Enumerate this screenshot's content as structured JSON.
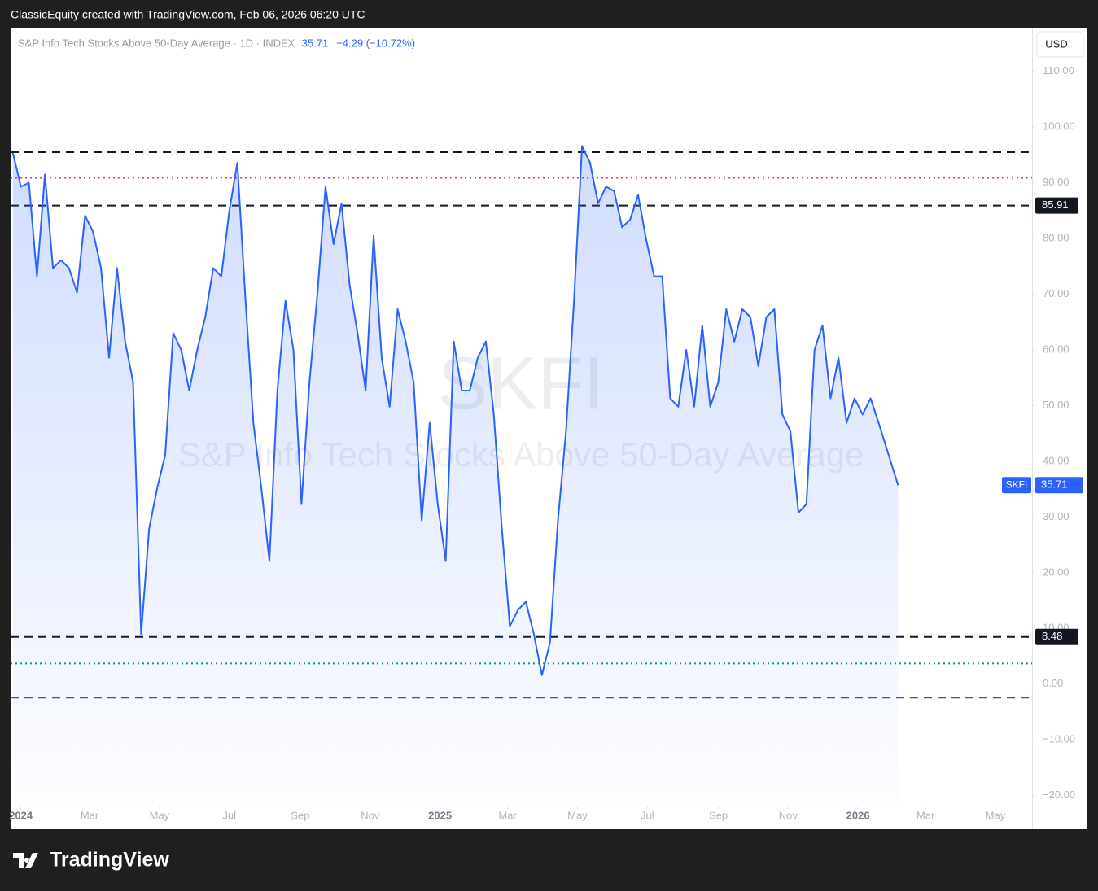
{
  "chart_data": {
    "type": "line",
    "credit": "ClassicEquity created with TradingView.com, Feb 06, 2026 06:20 UTC",
    "legend_label": "S&P Info Tech Stocks Above 50-Day Average · 1D · INDEX",
    "change": "−4.29 (−10.72%)",
    "currency": "USD",
    "watermark_symbol": "SKFI",
    "watermark_title": "S&P Info Tech Stocks Above 50-Day Average",
    "brand": "TradingView",
    "x": [
      "2023-12-25",
      "2024-01-01",
      "2024-01-08",
      "2024-01-15",
      "2024-01-22",
      "2024-01-29",
      "2024-02-05",
      "2024-02-12",
      "2024-02-19",
      "2024-02-26",
      "2024-03-04",
      "2024-03-11",
      "2024-03-18",
      "2024-03-25",
      "2024-04-01",
      "2024-04-08",
      "2024-04-15",
      "2024-04-22",
      "2024-04-29",
      "2024-05-06",
      "2024-05-13",
      "2024-05-20",
      "2024-05-27",
      "2024-06-03",
      "2024-06-10",
      "2024-06-17",
      "2024-06-24",
      "2024-07-01",
      "2024-07-08",
      "2024-07-15",
      "2024-07-22",
      "2024-07-29",
      "2024-08-05",
      "2024-08-12",
      "2024-08-19",
      "2024-08-26",
      "2024-09-02",
      "2024-09-09",
      "2024-09-16",
      "2024-09-23",
      "2024-09-30",
      "2024-10-07",
      "2024-10-14",
      "2024-10-21",
      "2024-10-28",
      "2024-11-04",
      "2024-11-11",
      "2024-11-18",
      "2024-11-25",
      "2024-12-02",
      "2024-12-09",
      "2024-12-16",
      "2024-12-23",
      "2024-12-30",
      "2025-01-06",
      "2025-01-13",
      "2025-01-20",
      "2025-01-27",
      "2025-02-03",
      "2025-02-10",
      "2025-02-17",
      "2025-02-24",
      "2025-03-03",
      "2025-03-10",
      "2025-03-17",
      "2025-03-24",
      "2025-03-31",
      "2025-04-07",
      "2025-04-14",
      "2025-04-21",
      "2025-04-28",
      "2025-05-05",
      "2025-05-12",
      "2025-05-19",
      "2025-05-26",
      "2025-06-02",
      "2025-06-09",
      "2025-06-16",
      "2025-06-23",
      "2025-06-30",
      "2025-07-07",
      "2025-07-14",
      "2025-07-21",
      "2025-07-28",
      "2025-08-04",
      "2025-08-11",
      "2025-08-18",
      "2025-08-25",
      "2025-09-01",
      "2025-09-08",
      "2025-09-15",
      "2025-09-22",
      "2025-09-29",
      "2025-10-06",
      "2025-10-13",
      "2025-10-20",
      "2025-10-27",
      "2025-11-03",
      "2025-11-10",
      "2025-11-17",
      "2025-11-24",
      "2025-12-01",
      "2025-12-08",
      "2025-12-15",
      "2025-12-22",
      "2025-12-29",
      "2026-01-05",
      "2026-01-12",
      "2026-01-19",
      "2026-02-05"
    ],
    "series": [
      {
        "name": "SKFI",
        "color": "#2962ff",
        "values": [
          95.4,
          89.3,
          90.0,
          73.2,
          91.5,
          74.7,
          76.1,
          74.7,
          70.3,
          84.1,
          81.2,
          74.7,
          58.6,
          74.7,
          61.5,
          54.2,
          8.9,
          27.9,
          35.2,
          41.1,
          63.0,
          60.0,
          52.7,
          60.0,
          65.9,
          74.7,
          73.2,
          84.9,
          93.6,
          69.5,
          46.9,
          35.2,
          22.1,
          52.7,
          68.8,
          60.0,
          32.3,
          54.2,
          70.3,
          89.3,
          79.0,
          86.3,
          71.7,
          63.0,
          52.7,
          80.5,
          58.6,
          49.8,
          67.3,
          61.5,
          54.2,
          29.4,
          46.9,
          32.3,
          22.1,
          61.5,
          52.7,
          52.7,
          58.6,
          61.5,
          48.4,
          27.9,
          10.4,
          13.3,
          14.8,
          8.9,
          1.6,
          7.5,
          29.4,
          45.4,
          68.8,
          96.6,
          93.6,
          86.3,
          89.3,
          88.5,
          82.0,
          83.4,
          87.8,
          79.8,
          73.2,
          73.2,
          51.3,
          49.8,
          60.0,
          49.8,
          64.4,
          49.8,
          54.2,
          67.3,
          61.5,
          67.3,
          65.9,
          57.1,
          65.9,
          67.3,
          48.4,
          45.4,
          30.8,
          32.3,
          60.0,
          64.4,
          51.3,
          58.6,
          46.9,
          51.3,
          48.4,
          51.3,
          46.9,
          35.71
        ]
      }
    ],
    "hlines": [
      {
        "value": 95.5,
        "color": "#131722",
        "style": "dashed"
      },
      {
        "value": 90.9,
        "color": "#f23645",
        "style": "dotted"
      },
      {
        "value": 85.91,
        "color": "#131722",
        "style": "dashed",
        "labeled": true
      },
      {
        "value": 8.48,
        "color": "#131722",
        "style": "dashed",
        "labeled": true
      },
      {
        "value": 3.7,
        "color": "#089981",
        "style": "dotted"
      },
      {
        "value": -2.4,
        "color": "#673ab7",
        "style": "dashed"
      }
    ],
    "xlim": [
      "2023-12-23",
      "2026-06-02"
    ],
    "xticks": [
      {
        "value": "2024-01-01",
        "label": "2024"
      },
      {
        "value": "2024-03-01",
        "label": "Mar"
      },
      {
        "value": "2024-05-01",
        "label": "May"
      },
      {
        "value": "2024-07-01",
        "label": "Jul"
      },
      {
        "value": "2024-09-01",
        "label": "Sep"
      },
      {
        "value": "2024-11-01",
        "label": "Nov"
      },
      {
        "value": "2025-01-01",
        "label": "2025"
      },
      {
        "value": "2025-03-01",
        "label": "Mar"
      },
      {
        "value": "2025-05-01",
        "label": "May"
      },
      {
        "value": "2025-07-01",
        "label": "Jul"
      },
      {
        "value": "2025-09-01",
        "label": "Sep"
      },
      {
        "value": "2025-11-01",
        "label": "Nov"
      },
      {
        "value": "2026-01-01",
        "label": "2026"
      },
      {
        "value": "2026-03-01",
        "label": "Mar"
      },
      {
        "value": "2026-05-01",
        "label": "May"
      }
    ],
    "ylim": [
      -21.8,
      117.7
    ],
    "yticks": [
      {
        "value": -20,
        "label": "−20.00"
      },
      {
        "value": -10,
        "label": "−10.00"
      },
      {
        "value": 0,
        "label": "0.00"
      },
      {
        "value": 10,
        "label": "10.00"
      },
      {
        "value": 20,
        "label": "20.00"
      },
      {
        "value": 30,
        "label": "30.00"
      },
      {
        "value": 40,
        "label": "40.00"
      },
      {
        "value": 50,
        "label": "50.00"
      },
      {
        "value": 60,
        "label": "60.00"
      },
      {
        "value": 70,
        "label": "70.00"
      },
      {
        "value": 80,
        "label": "80.00"
      },
      {
        "value": 90,
        "label": "90.00"
      },
      {
        "value": 100,
        "label": "100.00"
      },
      {
        "value": 110,
        "label": "110.00"
      }
    ],
    "grid": false
  }
}
